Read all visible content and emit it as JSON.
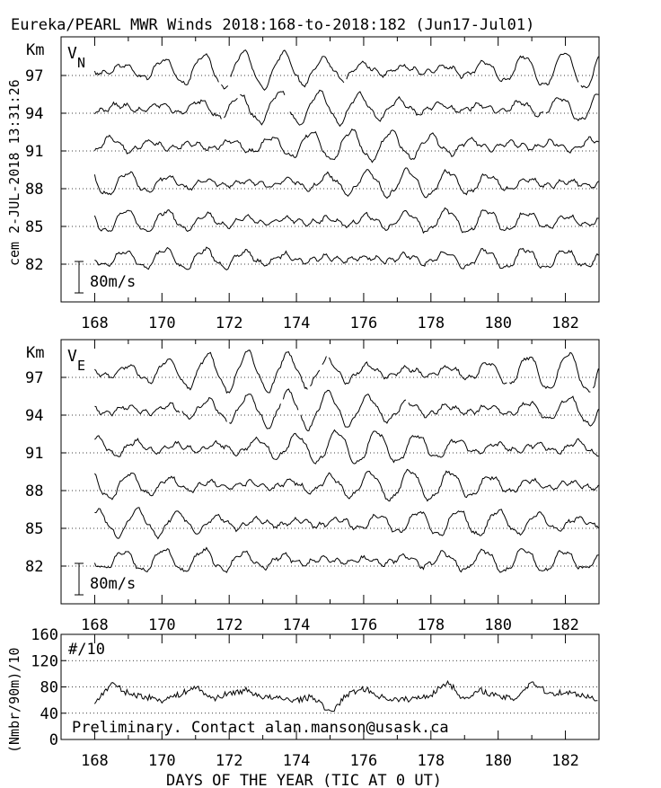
{
  "title": "Eureka/PEARL MWR Winds 2018:168-to-2018:182 (Jun17-Jul01)",
  "side_label": "cem 2-JUL-2018 13:31:26",
  "x_axis_label": "DAYS OF THE YEAR (TIC AT 0 UT)",
  "chart_data": [
    {
      "type": "line",
      "panel": "north",
      "component_label": "V",
      "component_sub": "N",
      "unit_label": "Km",
      "scale_bar_label": "80m/s",
      "x_ticks": [
        168,
        170,
        172,
        174,
        176,
        178,
        180,
        182
      ],
      "x_range": [
        167.0,
        183.0
      ],
      "data_x_range": [
        168.0,
        183.0
      ],
      "heights_km": [
        82,
        85,
        88,
        91,
        94,
        97
      ],
      "height_tick_labels": [
        "82",
        "85",
        "88",
        "91",
        "94",
        "97"
      ],
      "scale_m_s": 80,
      "series_style": "tidal oscillation, ~12 h period, amplitude 20-40 m/s, gaps at top heights"
    },
    {
      "type": "line",
      "panel": "east",
      "component_label": "V",
      "component_sub": "E",
      "unit_label": "Km",
      "scale_bar_label": "80m/s",
      "x_ticks": [
        168,
        170,
        172,
        174,
        176,
        178,
        180,
        182
      ],
      "x_range": [
        167.0,
        183.0
      ],
      "data_x_range": [
        168.0,
        183.0
      ],
      "heights_km": [
        82,
        85,
        88,
        91,
        94,
        97
      ],
      "height_tick_labels": [
        "82",
        "85",
        "88",
        "91",
        "94",
        "97"
      ],
      "scale_m_s": 80,
      "series_style": "tidal oscillation, ~12 h period, amplitude 20-40 m/s, gaps at top heights"
    },
    {
      "type": "line",
      "panel": "counts",
      "y_axis_label": "(Nmbr/90m)/10",
      "inner_label": "#/10",
      "note": "Preliminary. Contact alan.manson@usask.ca",
      "x_ticks": [
        168,
        170,
        172,
        174,
        176,
        178,
        180,
        182
      ],
      "x_range": [
        167.0,
        183.0
      ],
      "y_range": [
        0,
        160
      ],
      "y_ticks": [
        0,
        40,
        80,
        120,
        160
      ],
      "y_tick_labels": [
        "0",
        "40",
        "80",
        "120",
        "160"
      ],
      "grid_y": [
        40,
        80,
        120
      ],
      "counts_daily": [
        {
          "day": 168.0,
          "value": 55
        },
        {
          "day": 168.5,
          "value": 85
        },
        {
          "day": 169.0,
          "value": 70
        },
        {
          "day": 169.5,
          "value": 65
        },
        {
          "day": 170.0,
          "value": 60
        },
        {
          "day": 170.5,
          "value": 68
        },
        {
          "day": 171.0,
          "value": 80
        },
        {
          "day": 171.5,
          "value": 62
        },
        {
          "day": 172.0,
          "value": 70
        },
        {
          "day": 172.5,
          "value": 75
        },
        {
          "day": 173.0,
          "value": 65
        },
        {
          "day": 173.5,
          "value": 62
        },
        {
          "day": 174.0,
          "value": 60
        },
        {
          "day": 174.5,
          "value": 65
        },
        {
          "day": 175.0,
          "value": 40
        },
        {
          "day": 175.5,
          "value": 68
        },
        {
          "day": 176.0,
          "value": 78
        },
        {
          "day": 176.5,
          "value": 65
        },
        {
          "day": 177.0,
          "value": 60
        },
        {
          "day": 177.5,
          "value": 62
        },
        {
          "day": 178.0,
          "value": 68
        },
        {
          "day": 178.5,
          "value": 88
        },
        {
          "day": 179.0,
          "value": 60
        },
        {
          "day": 179.5,
          "value": 75
        },
        {
          "day": 180.0,
          "value": 65
        },
        {
          "day": 180.5,
          "value": 62
        },
        {
          "day": 181.0,
          "value": 88
        },
        {
          "day": 181.5,
          "value": 70
        },
        {
          "day": 182.0,
          "value": 72
        },
        {
          "day": 182.5,
          "value": 68
        },
        {
          "day": 183.0,
          "value": 60
        }
      ]
    }
  ]
}
